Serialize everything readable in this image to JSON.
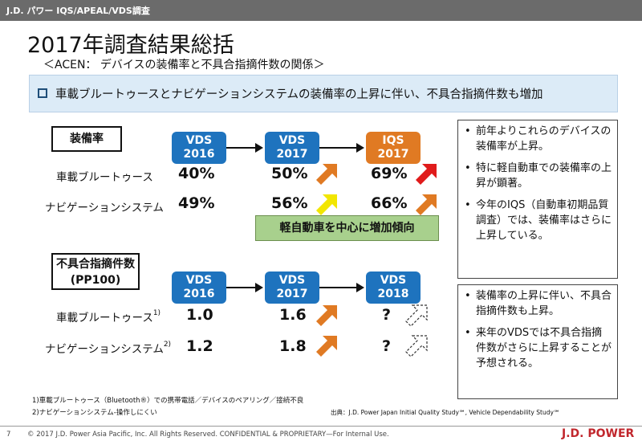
{
  "header": {
    "bar_text": "J.D. パワー IQS/APEAL/VDS調査"
  },
  "title": "2017年調査結果総括",
  "subtitle": "＜ACEN： デバイスの装備率と不具合指摘件数の関係＞",
  "headline": "車載ブルートゥースとナビゲーションシステムの装備率の上昇に伴い、不具合指摘件数も増加",
  "section1": {
    "label": "装備率",
    "columns": [
      {
        "line1": "VDS",
        "line2": "2016",
        "color": "#1e73be"
      },
      {
        "line1": "VDS",
        "line2": "2017",
        "color": "#1e73be"
      },
      {
        "line1": "IQS",
        "line2": "2017",
        "color": "#e07a23"
      }
    ],
    "rows": [
      {
        "label": "車載ブルートゥース",
        "values": [
          "40%",
          "50%",
          "69%"
        ]
      },
      {
        "label": "ナビゲーションシステム",
        "values": [
          "49%",
          "56%",
          "66%"
        ]
      }
    ],
    "callout": "軽自動車を中心に増加傾向"
  },
  "section2": {
    "label_line1": "不具合指摘件数",
    "label_line2": "(PP100)",
    "columns": [
      {
        "line1": "VDS",
        "line2": "2016"
      },
      {
        "line1": "VDS",
        "line2": "2017"
      },
      {
        "line1": "VDS",
        "line2": "2018"
      }
    ],
    "rows": [
      {
        "label": "車載ブルートゥース",
        "note": "1)",
        "values": [
          "1.0",
          "1.6",
          "?"
        ]
      },
      {
        "label": "ナビゲーションシステム",
        "note": "2)",
        "values": [
          "1.2",
          "1.8",
          "?"
        ]
      }
    ]
  },
  "side_notes_top": [
    "前年よりこれらのデバイスの装備率が上昇。",
    "特に軽自動車での装備率の上昇が顕著。",
    "今年のIQS（自動車初期品質調査）では、装備率はさらに上昇している。"
  ],
  "side_notes_bottom": [
    "装備率の上昇に伴い、不具合指摘件数も上昇。",
    "来年のVDSでは不具合指摘件数がさらに上昇することが予想される。"
  ],
  "footnotes": [
    "1)車載ブルートゥース（Bluetooth®）での携帯電話／デバイスのペアリング／接続不良",
    "2)ナビゲーションシステム-操作しにくい"
  ],
  "source": "出典：J.D. Power Japan Initial Quality Study℠, Vehicle Dependability Study℠",
  "footer": {
    "page_number": "7",
    "copyright": "© 2017 J.D. Power Asia Pacific, Inc. All Rights Reserved. CONFIDENTIAL & PROPRIETARY—For Internal Use.",
    "brand": "J.D. POWER"
  },
  "colors": {
    "blue": "#1e73be",
    "orange": "#e07a23",
    "red": "#e01b1b",
    "yellow": "#f2e600",
    "green": "#a8d08d"
  }
}
